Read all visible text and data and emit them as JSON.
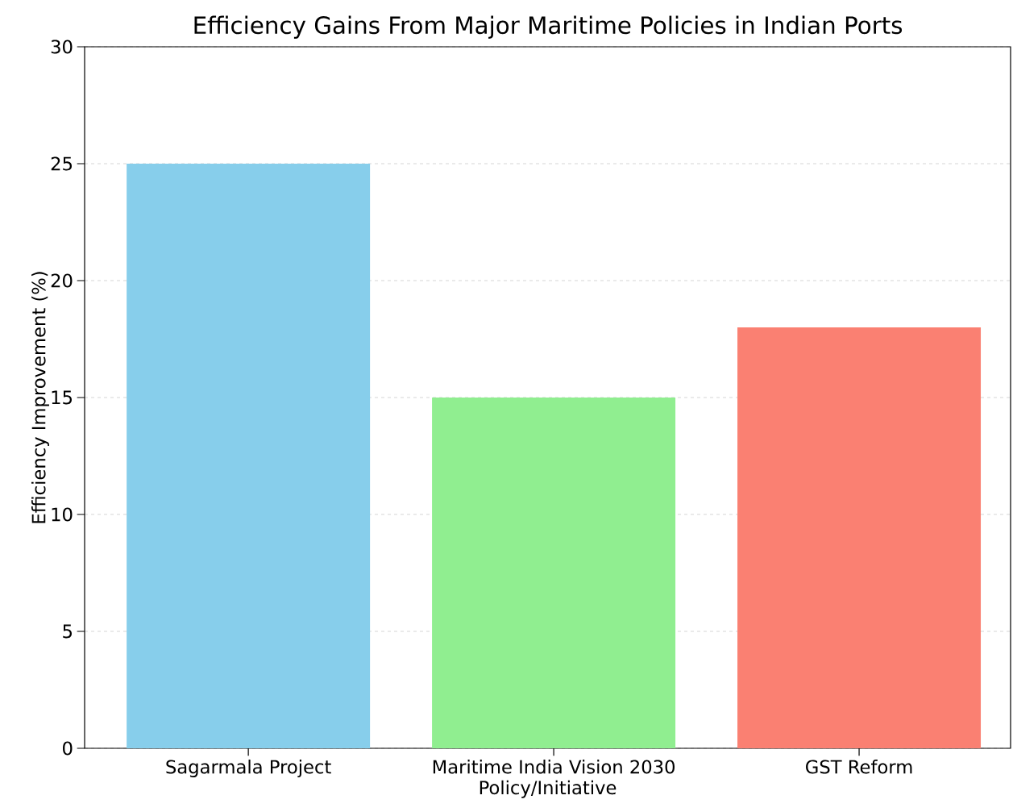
{
  "chart_data": {
    "type": "bar",
    "title": "Efficiency Gains From Major Maritime Policies in Indian Ports",
    "xlabel": "Policy/Initiative",
    "ylabel": "Efficiency Improvement (%)",
    "categories": [
      "Sagarmala Project",
      "Maritime India Vision 2030",
      "GST Reform"
    ],
    "values": [
      25,
      15,
      18
    ],
    "colors": [
      "#87ceeb",
      "#90ee90",
      "#fa8072"
    ],
    "ylim": [
      0,
      30
    ],
    "yticks": [
      0,
      5,
      10,
      15,
      20,
      25,
      30
    ],
    "grid": "y"
  }
}
